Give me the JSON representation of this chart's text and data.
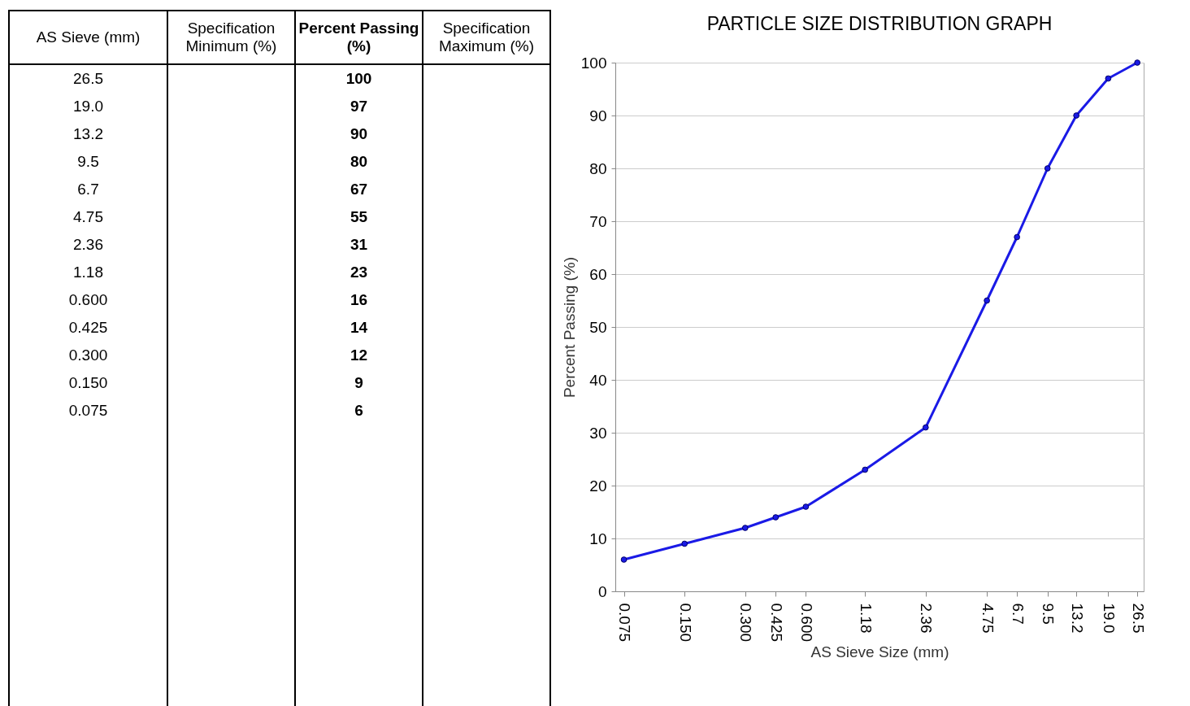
{
  "chart_data": [
    {
      "type": "other",
      "ylabel": "AS Sieve (mm)",
      "categories": [
        "Specification Minimum (%)",
        "Percent Passing (%)",
        "Specification Maximum (%)"
      ],
      "y_categories": [
        "26.5",
        "19.0",
        "13.2",
        "9.5",
        "6.7",
        "4.75",
        "2.36",
        "1.18",
        "0.600",
        "0.425",
        "0.300",
        "0.150",
        "0.075"
      ],
      "cell_labels": [
        [
          null,
          "100",
          null
        ],
        [
          null,
          "97",
          null
        ],
        [
          null,
          "90",
          null
        ],
        [
          null,
          "80",
          null
        ],
        [
          null,
          "67",
          null
        ],
        [
          null,
          "55",
          null
        ],
        [
          null,
          "31",
          null
        ],
        [
          null,
          "23",
          null
        ],
        [
          null,
          "16",
          null
        ],
        [
          null,
          "14",
          null
        ],
        [
          null,
          "12",
          null
        ],
        [
          null,
          "9",
          null
        ],
        [
          null,
          "6",
          null
        ]
      ]
    },
    {
      "type": "line",
      "title": "PARTICLE SIZE DISTRIBUTION GRAPH",
      "xlabel": "AS Sieve Size (mm)",
      "ylabel": "Percent Passing (%)",
      "x": [
        0.075,
        0.15,
        0.3,
        0.425,
        0.6,
        1.18,
        2.36,
        4.75,
        6.7,
        9.5,
        13.2,
        19,
        26.5
      ],
      "series": [
        {
          "color": "#1a1ae6",
          "values": [
            6,
            9,
            12,
            14,
            16,
            23,
            31,
            55,
            67,
            80,
            90,
            97,
            100
          ]
        }
      ],
      "log": "x",
      "xlim": [
        0.068,
        28.5
      ],
      "xticks": [
        0.075,
        {
          "value": 0.15,
          "label": "0.150"
        },
        {
          "value": 0.3,
          "label": "0.300"
        },
        0.425,
        {
          "value": 0.6,
          "label": "0.600"
        },
        1.18,
        2.36,
        4.75,
        6.7,
        9.5,
        13.2,
        {
          "value": 19,
          "label": "19.0"
        },
        26.5
      ],
      "ylim": [
        0,
        100
      ],
      "yticks": [
        0,
        10,
        20,
        30,
        40,
        50,
        60,
        70,
        80,
        90,
        100
      ],
      "grid": "y",
      "marker": "circle",
      "line_style": "solid"
    }
  ]
}
